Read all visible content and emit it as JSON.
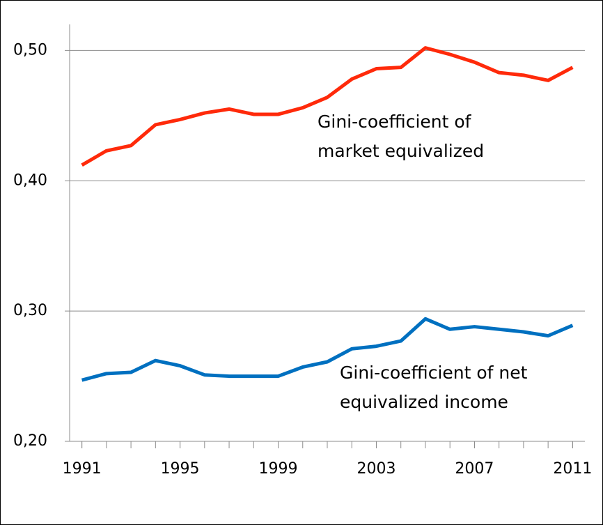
{
  "chart_data": {
    "type": "line",
    "x": [
      1991,
      1992,
      1993,
      1994,
      1995,
      1996,
      1997,
      1998,
      1999,
      2000,
      2001,
      2002,
      2003,
      2004,
      2005,
      2006,
      2007,
      2008,
      2009,
      2010,
      2011
    ],
    "series": [
      {
        "color": "#ff2a0a",
        "values": [
          0.412,
          0.423,
          0.427,
          0.443,
          0.447,
          0.452,
          0.455,
          0.451,
          0.451,
          0.456,
          0.464,
          0.478,
          0.486,
          0.487,
          0.502,
          0.497,
          0.491,
          0.483,
          0.481,
          0.477,
          0.487
        ]
      },
      {
        "color": "#0070c0",
        "values": [
          0.247,
          0.252,
          0.253,
          0.262,
          0.258,
          0.251,
          0.25,
          0.25,
          0.25,
          0.257,
          0.261,
          0.271,
          0.273,
          0.277,
          0.294,
          0.286,
          0.288,
          0.286,
          0.284,
          0.281,
          0.289
        ]
      }
    ],
    "annotations": [
      {
        "lines": [
          "Gini-coefficient of",
          "market equivalized"
        ]
      },
      {
        "lines": [
          "Gini-coefficient of net",
          "equivalized income"
        ]
      }
    ],
    "xlim": [
      1990.5,
      2011.5
    ],
    "xticks": [
      1991,
      1995,
      1999,
      2003,
      2007,
      2011
    ],
    "ylim": [
      0.2,
      0.52
    ],
    "yticks": [
      {
        "value": 0.2,
        "label": "0,20"
      },
      {
        "value": 0.3,
        "label": "0,30"
      },
      {
        "value": 0.4,
        "label": "0,40"
      },
      {
        "value": 0.5,
        "label": "0,50"
      }
    ],
    "grid": true
  }
}
